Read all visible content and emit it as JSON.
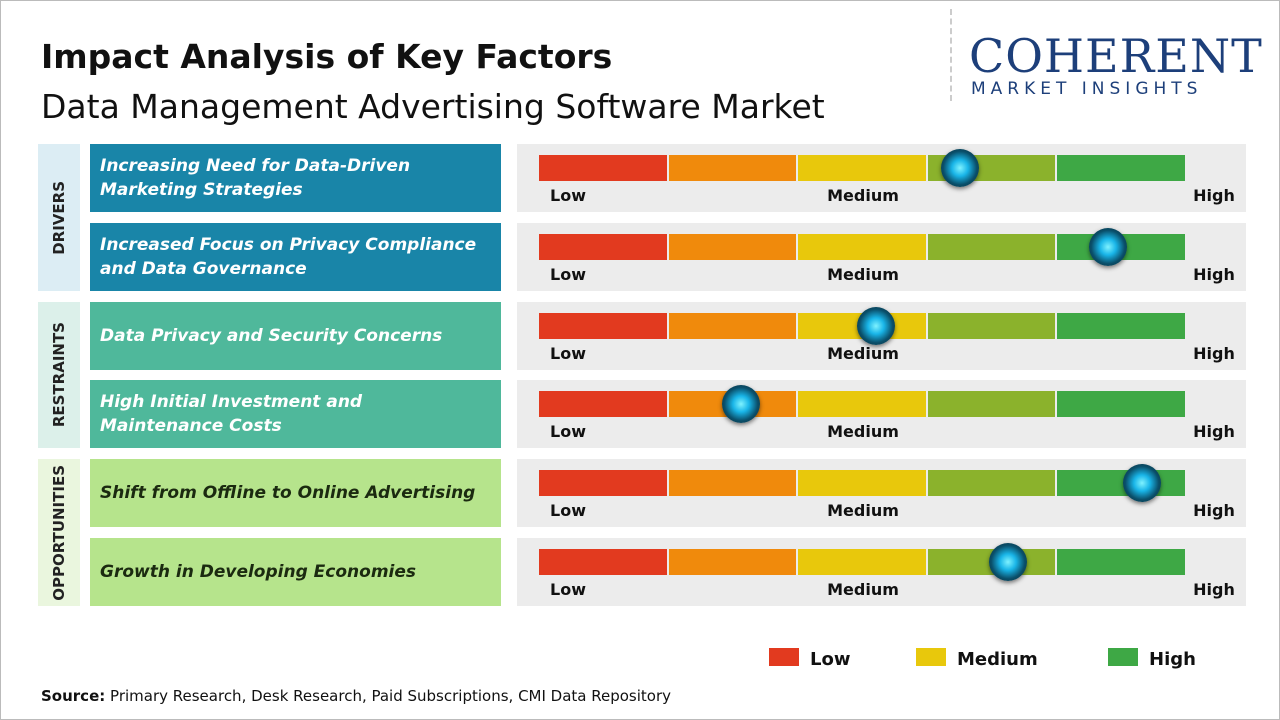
{
  "header": {
    "title": "Impact Analysis of Key Factors",
    "subtitle": "Data Management Advertising Software Market"
  },
  "logo": {
    "name": "COHERENT",
    "tagline": "MARKET INSIGHTS"
  },
  "scale": {
    "colors": [
      "#e23a1f",
      "#f08a0c",
      "#e8c80c",
      "#8bb22c",
      "#3ea845"
    ],
    "labels": [
      "Low",
      "Medium",
      "High"
    ]
  },
  "groups": [
    {
      "label": "DRIVERS",
      "color": "#1985a8",
      "text_color": "#ffffff",
      "bg": "#dcedf4",
      "factors": [
        {
          "text": "Increasing Need for Data-Driven Marketing Strategies",
          "impact": 3.25
        },
        {
          "text": "Increased Focus on Privacy Compliance and Data Governance",
          "impact": 4.39
        }
      ]
    },
    {
      "label": "RESTRAINTS",
      "color": "#4fb89b",
      "text_color": "#ffffff",
      "bg": "#dcf0ea",
      "factors": [
        {
          "text": "Data Privacy and Security Concerns",
          "impact": 2.6
        },
        {
          "text": "High Initial Investment and Maintenance Costs",
          "impact": 1.56
        }
      ]
    },
    {
      "label": "OPPORTUNITIES",
      "color": "#b6e48c",
      "text_color": "#1b2a10",
      "bg": "#eaf6de",
      "factors": [
        {
          "text": "Shift from Offline to Online Advertising",
          "impact": 4.65
        },
        {
          "text": "Growth in Developing Economies",
          "impact": 3.62
        }
      ]
    }
  ],
  "legend": [
    {
      "label": "Low",
      "color": "#e23a1f"
    },
    {
      "label": "Medium",
      "color": "#e8c80c"
    },
    {
      "label": "High",
      "color": "#3ea845"
    }
  ],
  "source": {
    "label": "Source:",
    "text": "Primary Research, Desk Research, Paid Subscriptions, CMI Data Repository"
  }
}
